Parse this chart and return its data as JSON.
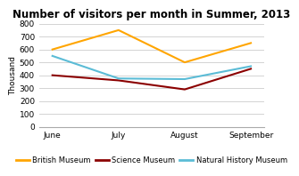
{
  "title": "Number of visitors per month in Summer, 2013",
  "ylabel": "Thousand",
  "months": [
    "June",
    "July",
    "August",
    "September"
  ],
  "series": {
    "British Museum": {
      "values": [
        600,
        750,
        500,
        650
      ],
      "color": "#FFA500"
    },
    "Science Museum": {
      "values": [
        400,
        360,
        290,
        450
      ],
      "color": "#8B0000"
    },
    "Natural History Museum": {
      "values": [
        550,
        375,
        370,
        470
      ],
      "color": "#5BBCD6"
    }
  },
  "ylim": [
    0,
    800
  ],
  "yticks": [
    0,
    100,
    200,
    300,
    400,
    500,
    600,
    700,
    800
  ],
  "background_color": "#FFFFFF",
  "grid_color": "#CCCCCC",
  "title_fontsize": 8.5,
  "axis_label_fontsize": 6.5,
  "tick_fontsize": 6.5,
  "legend_fontsize": 6.0
}
